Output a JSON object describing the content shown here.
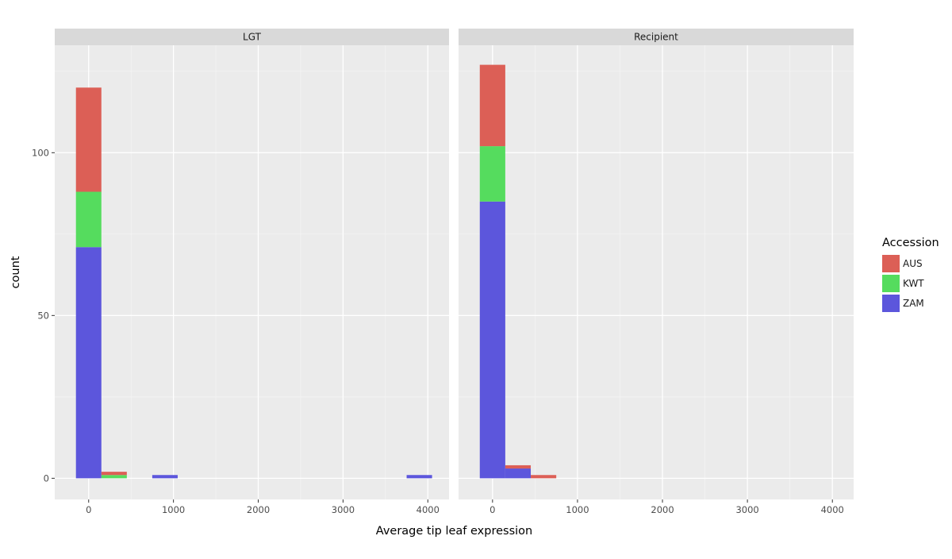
{
  "chart_data": {
    "type": "bar",
    "subtype": "faceted stacked histogram",
    "xlabel": "Average tip leaf expression",
    "ylabel": "count",
    "xlim": [
      -400,
      4250
    ],
    "ylim": [
      -6.5,
      133
    ],
    "x_ticks": [
      0,
      1000,
      2000,
      3000,
      4000
    ],
    "x_tick_labels": [
      "0",
      "1000",
      "2000",
      "3000",
      "4000"
    ],
    "y_ticks": [
      0,
      50,
      100
    ],
    "y_tick_labels": [
      "0",
      "50",
      "100"
    ],
    "bin_width": 300,
    "grid": true,
    "legend": {
      "title": "Accession",
      "position": "right",
      "items": [
        {
          "label": "AUS",
          "color": "#dc5f56"
        },
        {
          "label": "KWT",
          "color": "#55dc5e"
        },
        {
          "label": "ZAM",
          "color": "#5c56dc"
        }
      ]
    },
    "stack_order": [
      "ZAM",
      "KWT",
      "AUS"
    ],
    "facets": [
      {
        "title": "LGT",
        "bins": [
          {
            "x_center": 0,
            "ZAM": 71,
            "KWT": 17,
            "AUS": 32
          },
          {
            "x_center": 300,
            "ZAM": 0,
            "KWT": 1,
            "AUS": 1
          },
          {
            "x_center": 900,
            "ZAM": 1,
            "KWT": 0,
            "AUS": 0
          },
          {
            "x_center": 3900,
            "ZAM": 1,
            "KWT": 0,
            "AUS": 0
          }
        ]
      },
      {
        "title": "Recipient",
        "bins": [
          {
            "x_center": 0,
            "ZAM": 85,
            "KWT": 17,
            "AUS": 25
          },
          {
            "x_center": 300,
            "ZAM": 3,
            "KWT": 0,
            "AUS": 1
          },
          {
            "x_center": 600,
            "ZAM": 0,
            "KWT": 0,
            "AUS": 1
          }
        ]
      }
    ]
  }
}
